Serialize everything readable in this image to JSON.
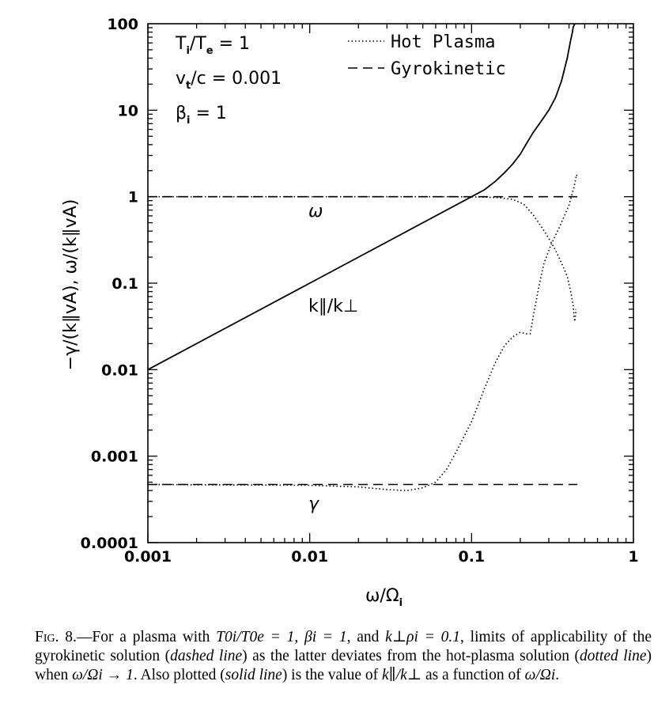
{
  "chart_data": {
    "type": "line",
    "scale": "log-log",
    "xlabel": "ω/Ω",
    "xlabel_sub": "i",
    "ylabel": "−γ/(k∥vA), ω/(k∥vA)",
    "xlim": [
      0.001,
      1
    ],
    "ylim": [
      0.0001,
      100
    ],
    "x_ticks": [
      {
        "value": 0.001,
        "label": "0.001"
      },
      {
        "value": 0.01,
        "label": "0.01"
      },
      {
        "value": 0.1,
        "label": "0.1"
      },
      {
        "value": 1,
        "label": "1"
      }
    ],
    "y_ticks": [
      {
        "value": 0.0001,
        "label": "0.0001"
      },
      {
        "value": 0.001,
        "label": "0.001"
      },
      {
        "value": 0.01,
        "label": "0.01"
      },
      {
        "value": 0.1,
        "label": "0.1"
      },
      {
        "value": 1,
        "label": "1"
      },
      {
        "value": 10,
        "label": "10"
      },
      {
        "value": 100,
        "label": "100"
      }
    ],
    "parameters": [
      {
        "main": "T",
        "sub": "i",
        "rest": "/T",
        "sub2": "e",
        "tail": " = 1"
      },
      {
        "main": "v",
        "sub": "t",
        "rest": "/c = 0.001",
        "sub2": "",
        "tail": ""
      },
      {
        "main": "β",
        "sub": "i",
        "rest": " = 1",
        "sub2": "",
        "tail": ""
      }
    ],
    "legend": [
      {
        "label": "Hot Plasma",
        "style": "dotted"
      },
      {
        "label": "Gyrokinetic",
        "style": "dashed"
      }
    ],
    "annotations": {
      "omega": "ω",
      "gamma": "γ",
      "kratio": "k∥/k⊥"
    },
    "series": [
      {
        "name": "Gyrokinetic ω",
        "style": "dashed",
        "points": [
          [
            0.001,
            1.0
          ],
          [
            0.45,
            1.0
          ]
        ]
      },
      {
        "name": "Gyrokinetic γ",
        "style": "dashed",
        "points": [
          [
            0.001,
            0.00047
          ],
          [
            0.45,
            0.00047
          ]
        ]
      },
      {
        "name": "Hot Plasma ω",
        "style": "dotted",
        "points": [
          [
            0.001,
            1.0
          ],
          [
            0.08,
            1.0
          ],
          [
            0.12,
            0.99
          ],
          [
            0.15,
            0.97
          ],
          [
            0.18,
            0.93
          ],
          [
            0.21,
            0.82
          ],
          [
            0.24,
            0.62
          ],
          [
            0.27,
            0.45
          ],
          [
            0.3,
            0.33
          ],
          [
            0.33,
            0.24
          ],
          [
            0.36,
            0.17
          ],
          [
            0.39,
            0.12
          ],
          [
            0.41,
            0.08
          ],
          [
            0.425,
            0.055
          ],
          [
            0.43,
            0.04
          ],
          [
            0.435,
            0.036
          ],
          [
            0.44,
            0.045
          ],
          [
            0.44,
            0.05
          ]
        ]
      },
      {
        "name": "Hot Plasma γ",
        "style": "dotted",
        "points": [
          [
            0.001,
            0.00047
          ],
          [
            0.01,
            0.00046
          ],
          [
            0.02,
            0.00044
          ],
          [
            0.03,
            0.00041
          ],
          [
            0.04,
            0.0004
          ],
          [
            0.05,
            0.00043
          ],
          [
            0.06,
            0.0005
          ],
          [
            0.07,
            0.0007
          ],
          [
            0.08,
            0.0011
          ],
          [
            0.1,
            0.0025
          ],
          [
            0.12,
            0.006
          ],
          [
            0.14,
            0.012
          ],
          [
            0.16,
            0.019
          ],
          [
            0.18,
            0.024
          ],
          [
            0.2,
            0.027
          ],
          [
            0.22,
            0.026
          ],
          [
            0.23,
            0.026
          ],
          [
            0.24,
            0.04
          ],
          [
            0.26,
            0.09
          ],
          [
            0.28,
            0.17
          ],
          [
            0.31,
            0.28
          ],
          [
            0.35,
            0.45
          ],
          [
            0.4,
            0.8
          ],
          [
            0.43,
            1.3
          ],
          [
            0.445,
            1.8
          ],
          [
            0.45,
            1.7
          ]
        ]
      },
      {
        "name": "k∥/k⊥",
        "style": "solid",
        "points": [
          [
            0.001,
            0.01
          ],
          [
            0.01,
            0.1
          ],
          [
            0.1,
            1.0
          ],
          [
            0.12,
            1.2
          ],
          [
            0.14,
            1.5
          ],
          [
            0.16,
            1.9
          ],
          [
            0.18,
            2.4
          ],
          [
            0.2,
            3.1
          ],
          [
            0.22,
            4.2
          ],
          [
            0.24,
            5.5
          ],
          [
            0.26,
            6.8
          ],
          [
            0.28,
            8.3
          ],
          [
            0.3,
            10
          ],
          [
            0.33,
            14
          ],
          [
            0.36,
            22
          ],
          [
            0.39,
            40
          ],
          [
            0.41,
            65
          ],
          [
            0.42,
            80
          ],
          [
            0.425,
            92
          ],
          [
            0.43,
            96
          ],
          [
            0.435,
            100
          ]
        ]
      }
    ]
  },
  "caption": {
    "fig_label": "Fig. 8.",
    "dash": "—",
    "t1": "For a plasma with ",
    "m1": "T0i/T0e = 1",
    "t2": ", ",
    "m2": "βi = 1",
    "t3": ", and ",
    "m3": "k⊥ρi = 0.1",
    "t4": ", limits of applicability of the gyrokinetic solution (",
    "e1": "dashed line",
    "t5": ") as the latter deviates from the hot-plasma solution (",
    "e2": "dotted line",
    "t6": ") when ",
    "m4": "ω/Ωi → 1",
    "t7": ". Also plotted (",
    "e3": "solid line",
    "t8": ") is the value of ",
    "m5": "k∥/k⊥",
    "t9": " as a function of ",
    "m6": "ω/Ωi",
    "t10": "."
  }
}
